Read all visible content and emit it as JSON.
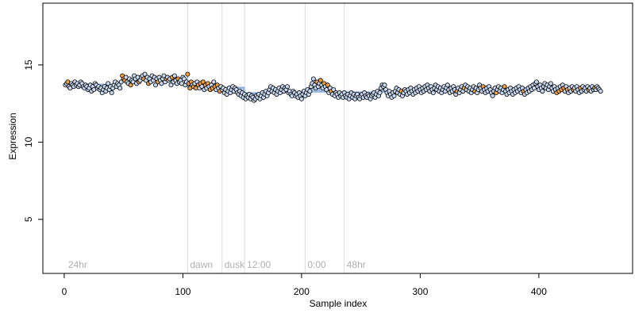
{
  "chart_data": {
    "type": "scatter",
    "title": "",
    "xlabel": "Sample index",
    "ylabel": "Expression",
    "xlim": [
      -18,
      479
    ],
    "ylim": [
      1.5,
      19
    ],
    "x_ticks": [
      0,
      100,
      200,
      300,
      400
    ],
    "y_ticks": [
      5,
      10,
      15
    ],
    "grid": false,
    "legend": "none",
    "colors": {
      "default_point": "#c9d9f2",
      "highlight_point": "#f0a040",
      "point_edge": "#000000",
      "bar": "#7aa3d6",
      "marker_line": "#dcdcdc",
      "annotation": "#b0b0b0"
    },
    "markers": [
      {
        "x": 104,
        "label": "dawn"
      },
      {
        "x": 133,
        "label": "dusk"
      },
      {
        "x": 152,
        "label": "12:00"
      },
      {
        "x": 203,
        "label": "0:00"
      },
      {
        "x": 236,
        "label": "48hr"
      }
    ],
    "annotations": [
      {
        "x": 2,
        "label": "24hr"
      }
    ],
    "reference_segments": [
      {
        "x_start": 4,
        "x_end": 48,
        "y": 13.75
      },
      {
        "x_start": 104,
        "x_end": 152,
        "y": 13.55
      },
      {
        "x_start": 152,
        "x_end": 203,
        "y": 13.2
      },
      {
        "x_start": 203,
        "x_end": 236,
        "y": 13.25
      },
      {
        "x_start": 236,
        "x_end": 286,
        "y": 13.25
      }
    ],
    "series": [
      {
        "x_start": 1,
        "x_step": 1,
        "values": [
          13.7,
          13.8,
          13.9,
          13.6,
          13.5,
          13.8,
          13.7,
          13.6,
          13.9,
          13.7,
          13.8,
          13.6,
          13.7,
          13.9,
          13.8,
          13.6,
          13.5,
          13.7,
          13.6,
          13.4,
          13.5,
          13.7,
          13.3,
          13.6,
          13.4,
          13.8,
          13.7,
          13.5,
          13.6,
          13.4,
          13.5,
          13.2,
          13.4,
          13.6,
          13.3,
          13.5,
          13.8,
          13.4,
          13.6,
          13.2,
          13.5,
          13.7,
          13.9,
          13.6,
          13.8,
          13.7,
          13.5,
          13.9,
          14.3,
          14.1,
          14.0,
          14.2,
          13.9,
          13.8,
          14.1,
          13.7,
          14.0,
          13.9,
          14.3,
          14.1,
          13.8,
          14.2,
          13.9,
          14.0,
          14.2,
          14.3,
          14.1,
          14.4,
          14.0,
          14.2,
          13.8,
          14.1,
          13.9,
          14.3,
          14.0,
          14.2,
          13.7,
          14.1,
          13.9,
          14.2,
          14.0,
          13.8,
          14.1,
          14.3,
          13.9,
          14.1,
          14.2,
          14.0,
          14.1,
          13.7,
          14.2,
          13.9,
          14.3,
          14.0,
          13.8,
          14.1,
          13.9,
          14.0,
          13.8,
          14.2,
          14.1,
          13.7,
          13.9,
          14.4,
          13.8,
          13.5,
          13.9,
          13.7,
          13.6,
          13.8,
          13.5,
          13.9,
          13.7,
          13.5,
          13.8,
          13.6,
          13.9,
          13.4,
          13.7,
          13.5,
          13.8,
          13.6,
          13.4,
          13.7,
          13.5,
          13.9,
          13.6,
          13.4,
          13.7,
          13.5,
          13.3,
          13.6,
          13.4,
          13.5,
          13.2,
          13.4,
          13.1,
          13.3,
          13.5,
          13.2,
          13.4,
          13.6,
          13.3,
          13.5,
          13.4,
          13.2,
          13.1,
          13.3,
          13.0,
          13.2,
          12.9,
          13.1,
          12.8,
          13.0,
          12.9,
          13.1,
          12.8,
          13.0,
          12.9,
          12.7,
          12.8,
          13.0,
          12.9,
          13.1,
          12.8,
          13.0,
          13.2,
          12.9,
          13.1,
          13.3,
          13.0,
          13.2,
          13.4,
          13.6,
          13.3,
          13.5,
          13.2,
          13.4,
          13.1,
          13.3,
          13.5,
          13.2,
          13.4,
          13.6,
          13.3,
          13.5,
          13.4,
          13.6,
          13.2,
          13.3,
          13.1,
          13.0,
          13.3,
          13.2,
          13.0,
          13.1,
          12.9,
          13.2,
          13.0,
          12.8,
          13.1,
          13.3,
          13.0,
          13.2,
          13.4,
          13.1,
          13.3,
          13.6,
          13.8,
          14.1,
          13.7,
          13.5,
          13.9,
          13.6,
          13.8,
          14.0,
          13.7,
          13.5,
          13.8,
          13.6,
          13.4,
          13.7,
          13.2,
          13.5,
          13.3,
          13.1,
          13.4,
          13.0,
          13.2,
          13.1,
          12.9,
          13.2,
          13.0,
          13.1,
          12.9,
          13.2,
          13.0,
          12.9,
          13.1,
          12.8,
          13.0,
          13.2,
          12.9,
          13.1,
          12.8,
          13.0,
          13.1,
          12.9,
          12.8,
          13.0,
          13.1,
          12.9,
          13.2,
          13.0,
          12.9,
          13.1,
          13.0,
          12.8,
          13.0,
          13.1,
          13.2,
          12.9,
          13.1,
          13.3,
          13.0,
          13.2,
          13.5,
          13.7,
          13.6,
          13.7,
          13.4,
          13.2,
          13.0,
          13.3,
          13.1,
          12.9,
          13.2,
          13.0,
          13.3,
          13.5,
          13.2,
          13.4,
          13.1,
          13.3,
          13.0,
          13.2,
          13.4,
          13.3,
          13.1,
          13.4,
          13.2,
          13.5,
          13.3,
          13.1,
          13.4,
          13.2,
          13.5,
          13.3,
          13.6,
          13.4,
          13.2,
          13.5,
          13.3,
          13.6,
          13.4,
          13.7,
          13.5,
          13.3,
          13.6,
          13.4,
          13.2,
          13.5,
          13.7,
          13.4,
          13.6,
          13.3,
          13.5,
          13.2,
          13.4,
          13.6,
          13.3,
          13.5,
          13.7,
          13.4,
          13.2,
          13.5,
          13.3,
          13.6,
          13.4,
          13.1,
          13.3,
          13.5,
          13.2,
          13.4,
          13.6,
          13.3,
          13.5,
          13.7,
          13.4,
          13.6,
          13.3,
          13.5,
          13.2,
          13.4,
          13.6,
          13.3,
          13.5,
          13.2,
          13.4,
          13.7,
          13.5,
          13.3,
          13.6,
          13.4,
          13.2,
          13.5,
          13.3,
          13.6,
          13.4,
          13.2,
          13.0,
          13.3,
          13.5,
          13.2,
          13.4,
          13.6,
          13.3,
          13.5,
          13.2,
          13.4,
          13.6,
          13.3,
          13.1,
          13.4,
          13.2,
          13.5,
          13.3,
          13.1,
          13.4,
          13.2,
          13.5,
          13.3,
          13.6,
          13.4,
          13.2,
          13.5,
          13.3,
          13.1,
          13.4,
          13.2,
          13.5,
          13.3,
          13.6,
          13.4,
          13.7,
          13.5,
          13.8,
          13.9,
          13.6,
          13.4,
          13.7,
          13.5,
          13.3,
          13.6,
          13.8,
          13.5,
          13.7,
          13.4,
          13.6,
          13.8,
          13.5,
          13.3,
          13.6,
          13.4,
          13.2,
          13.5,
          13.3,
          13.6,
          13.4,
          13.7,
          13.5,
          13.3,
          13.6,
          13.4,
          13.2,
          13.5,
          13.3,
          13.6,
          13.4,
          13.5,
          13.3,
          13.6,
          13.4,
          13.2,
          13.5,
          13.3,
          13.6,
          13.4,
          13.5,
          13.3,
          13.6,
          13.4,
          13.5,
          13.3,
          13.6,
          13.4,
          13.5,
          13.4,
          13.6,
          13.5,
          13.4,
          13.3
        ],
        "highlight_indices": [
          2,
          48,
          49,
          50,
          55,
          62,
          66,
          70,
          78,
          85,
          90,
          95,
          103,
          104,
          105,
          106,
          108,
          110,
          112,
          114,
          116,
          118,
          120,
          122,
          124,
          126,
          128,
          130,
          212,
          215,
          218,
          221,
          224,
          283,
          330,
          336,
          345,
          352,
          363,
          370,
          386,
          414,
          416,
          418,
          420,
          423,
          428,
          434,
          441,
          446
        ]
      }
    ]
  }
}
